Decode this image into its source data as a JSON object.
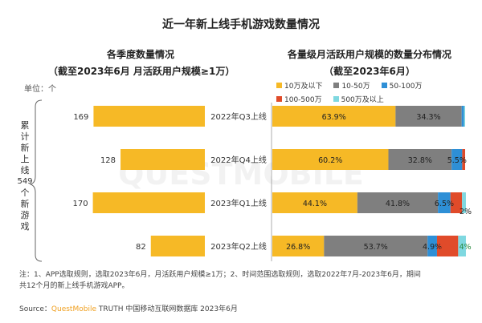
{
  "page": {
    "title": "近一年新上线手机游戏数量情况",
    "left_subtitle_1": "各季度数量情况",
    "left_subtitle_2": "（截至2023年6月 月活跃用户规模≥1万）",
    "right_subtitle_1": "各量级月活跃用户规模的数量分布情况",
    "right_subtitle_2": "（截至2023年6月）",
    "unit_label": "单位：个",
    "brace_label": [
      "累",
      "计",
      "新",
      "上",
      "线",
      "549",
      "个",
      "新",
      "游",
      "戏"
    ],
    "note_line_1": "注：1、APP选取规则，选取2023年6月，月活跃用户规模≥1万；2、时间范围选取规则，选取2022年7月-2023年6月，期间",
    "note_line_2": "共12个月的新上线手机游戏APP。",
    "source_prefix": "Source：",
    "source_brand": "QuestMobile",
    "source_rest": " TRUTH 中国移动互联网数据库 2023年6月",
    "watermark": "QUESTMOBILE"
  },
  "colors": {
    "gold": "#f6b926",
    "gray": "#7f7f7f",
    "blue": "#2e8fd6",
    "red": "#e04b2a",
    "cyan": "#7fd8e0"
  },
  "chart_data": [
    {
      "type": "bar",
      "orientation": "horizontal",
      "title": "各季度数量情况",
      "categories": [
        "2022年Q3上线",
        "2022年Q4上线",
        "2023年Q1上线",
        "2023年Q2上线"
      ],
      "values": [
        169,
        128,
        170,
        82
      ],
      "unit": "个"
    },
    {
      "type": "bar",
      "orientation": "horizontal",
      "stacked": true,
      "percent": true,
      "title": "各量级月活跃用户规模的数量分布情况",
      "categories": [
        "2022年Q3上线",
        "2022年Q4上线",
        "2023年Q1上线",
        "2023年Q2上线"
      ],
      "series": [
        {
          "name": "10万及以下",
          "color": "#f6b926",
          "values": [
            63.9,
            60.2,
            44.1,
            26.8
          ],
          "labels": [
            "63.9%",
            "60.2%",
            "44.1%",
            "26.8%"
          ]
        },
        {
          "name": "10-50万",
          "color": "#7f7f7f",
          "values": [
            34.3,
            32.8,
            41.8,
            53.7
          ],
          "labels": [
            "34.3%",
            "32.8%",
            "41.8%",
            "53.7%"
          ]
        },
        {
          "name": "50-100万",
          "color": "#2e8fd6",
          "values": [
            1.2,
            5.5,
            6.5,
            4.9
          ],
          "labels": [
            "",
            "5.5%",
            "6.5%",
            "4.9%"
          ]
        },
        {
          "name": "100-500万",
          "color": "#e04b2a",
          "values": [
            0.0,
            1.5,
            6.0,
            11.0
          ],
          "labels": [
            "",
            "",
            "6%",
            "11%"
          ]
        },
        {
          "name": "500万及以上",
          "color": "#7fd8e0",
          "values": [
            0.6,
            0.0,
            2.0,
            4.0
          ],
          "labels": [
            "",
            "",
            "2%",
            "4%"
          ]
        }
      ]
    }
  ]
}
